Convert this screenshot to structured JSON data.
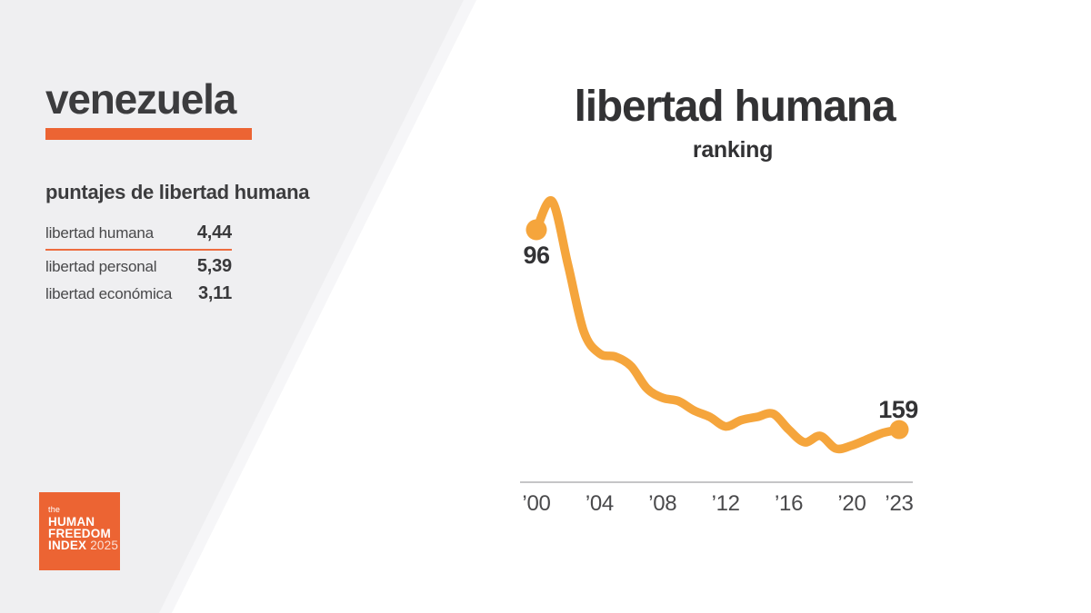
{
  "left_panel": {
    "country_title": "venezuela",
    "scores_heading": "puntajes de libertad humana",
    "scores": [
      {
        "label": "libertad humana",
        "value": "4,44"
      },
      {
        "label": "libertad personal",
        "value": "5,39"
      },
      {
        "label": "libertad económica",
        "value": "3,11"
      }
    ],
    "logo": {
      "prefix": "the",
      "line1": "HUMAN",
      "line2": "FREEDOM",
      "line3": "INDEX",
      "year": "2025"
    }
  },
  "chart": {
    "title": "libertad humana",
    "subtitle": "ranking",
    "start_label": "96",
    "end_label": "159"
  },
  "chart_data": {
    "type": "line",
    "title": "libertad humana",
    "subtitle": "ranking",
    "x": [
      2000,
      2001,
      2002,
      2003,
      2004,
      2005,
      2006,
      2007,
      2008,
      2009,
      2010,
      2011,
      2012,
      2013,
      2014,
      2015,
      2016,
      2017,
      2018,
      2019,
      2020,
      2021,
      2022,
      2023
    ],
    "series": [
      {
        "name": "ranking de libertad humana",
        "values": [
          96,
          87,
          107,
          128,
          135,
          136,
          139,
          146,
          149,
          150,
          153,
          155,
          158,
          156,
          155,
          154,
          159,
          163,
          161,
          165,
          164,
          162,
          160,
          159
        ]
      }
    ],
    "annotations": [
      {
        "x": 2000,
        "label": "96"
      },
      {
        "x": 2023,
        "label": "159"
      }
    ],
    "x_tick_years": [
      2000,
      2004,
      2008,
      2012,
      2016,
      2020,
      2023
    ],
    "x_tick_labels": [
      "’00",
      "’04",
      "’08",
      "’12",
      "’16",
      "’20",
      "’23"
    ],
    "y_axis_visible": false,
    "y_inverted": true,
    "grid": false,
    "legend": "none",
    "line_color": "#F5A53C",
    "endpoint_dots": true
  },
  "colors": {
    "accent_orange": "#EC6433",
    "line_orange": "#F5A53C",
    "panel_gray": "#EFEFF1",
    "text_dark": "#3C3C3E",
    "axis_gray": "#C5C5C7"
  }
}
